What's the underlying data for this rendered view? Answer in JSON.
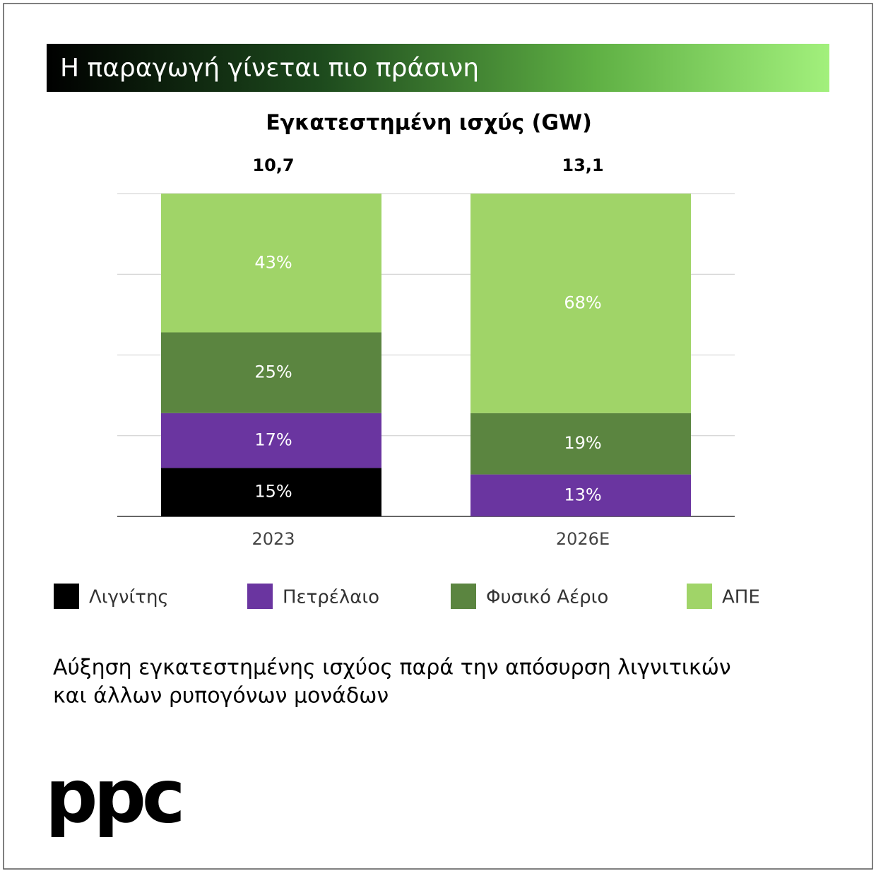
{
  "header": {
    "title": "Η παραγωγή γίνεται πιο πράσινη"
  },
  "chart_data": {
    "type": "stacked_bar_percent",
    "title": "Εγκατεστημένη ισχύς (GW)",
    "categories": [
      "2023",
      "2026E"
    ],
    "totals": {
      "values": [
        10.7,
        13.1
      ],
      "value_labels": [
        "10,7",
        "13,1"
      ]
    },
    "series": [
      {
        "name": "Λιγνίτης",
        "color": "#000000",
        "values": [
          15,
          null
        ],
        "value_labels": [
          "15%",
          null
        ]
      },
      {
        "name": "Πετρέλαιο",
        "color": "#6a35a0",
        "values": [
          17,
          13
        ],
        "value_labels": [
          "17%",
          "13%"
        ]
      },
      {
        "name": "Φυσικό Αέριο",
        "color": "#5b8540",
        "values": [
          25,
          19
        ],
        "value_labels": [
          "25%",
          "19%"
        ]
      },
      {
        "name": "ΑΠΕ",
        "color": "#a0d468",
        "values": [
          43,
          68
        ],
        "value_labels": [
          "43%",
          "68%"
        ]
      }
    ],
    "ylim": [
      0,
      100
    ],
    "yticks": [
      0,
      25,
      50,
      75,
      100
    ],
    "grid": true
  },
  "footnote": {
    "lines": [
      "Αύξηση εγκατεστημένης ισχύος παρά την απόσυρση λιγνιτικών",
      "και άλλων ρυπογόνων μονάδων"
    ]
  },
  "logo": "ppc"
}
